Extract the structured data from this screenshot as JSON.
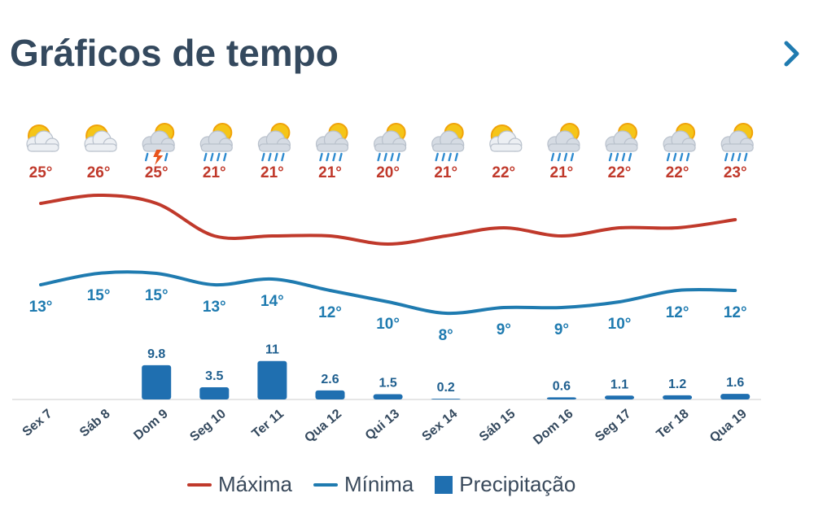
{
  "header": {
    "title": "Gráficos de tempo",
    "next_icon": "chevron-right-icon"
  },
  "colors": {
    "max": "#c0392b",
    "min": "#1f7bb0",
    "precip": "#1f6fb0",
    "title": "#34495e",
    "axis": "#dddddd"
  },
  "legend": {
    "max_label": "Máxima",
    "min_label": "Mínima",
    "precip_label": "Precipitação"
  },
  "chart_data": {
    "type": "line",
    "title": "Gráficos de tempo",
    "categories": [
      "Sex 7",
      "Sáb 8",
      "Dom 9",
      "Seg 10",
      "Ter 11",
      "Qua 12",
      "Qui 13",
      "Sex 14",
      "Sáb 15",
      "Dom 16",
      "Seg 17",
      "Ter 18",
      "Qua 19"
    ],
    "icons": [
      "sun-cloud",
      "sun-cloud",
      "thunderstorm",
      "rain",
      "rain",
      "rain",
      "rain",
      "rain",
      "sun-cloud",
      "rain",
      "rain",
      "rain",
      "rain"
    ],
    "series": [
      {
        "name": "Máxima",
        "type": "line",
        "unit": "°",
        "values": [
          25,
          26,
          25,
          21,
          21,
          21,
          20,
          21,
          22,
          21,
          22,
          22,
          23
        ]
      },
      {
        "name": "Mínima",
        "type": "line",
        "unit": "°",
        "values": [
          13,
          15,
          15,
          13,
          14,
          12,
          10,
          8,
          9,
          9,
          10,
          12,
          12
        ]
      },
      {
        "name": "Precipitação",
        "type": "bar",
        "values": [
          0,
          0,
          9.8,
          3.5,
          11,
          2.6,
          1.5,
          0.2,
          0,
          0.6,
          1.1,
          1.2,
          1.6
        ],
        "labels": [
          "",
          "",
          "9.8",
          "3.5",
          "11",
          "2.6",
          "1.5",
          "0.2",
          "",
          "0.6",
          "1.1",
          "1.2",
          "1.6"
        ]
      }
    ]
  }
}
